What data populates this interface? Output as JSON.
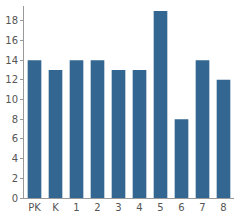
{
  "chart_data": {
    "type": "bar",
    "categories": [
      "PK",
      "K",
      "1",
      "2",
      "3",
      "4",
      "5",
      "6",
      "7",
      "8"
    ],
    "values": [
      14,
      13,
      14,
      14,
      13,
      13,
      19,
      8,
      14,
      12
    ],
    "color": "#336690",
    "ylim": [
      0,
      19.5
    ],
    "yticks": [
      0,
      2,
      4,
      6,
      8,
      10,
      12,
      14,
      16,
      18
    ],
    "grid": false
  }
}
